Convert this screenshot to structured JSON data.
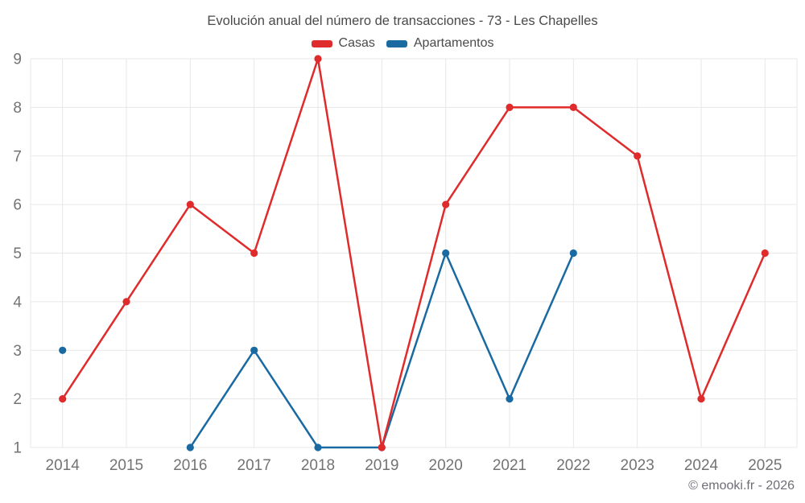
{
  "header": {
    "title": "Evolución anual del número de transacciones - 73 - Les Chapelles"
  },
  "legend": [
    {
      "label": "Casas",
      "color": "#df2b2b"
    },
    {
      "label": "Apartamentos",
      "color": "#1a6aa2"
    }
  ],
  "footer": {
    "copyright": "© emooki.fr - 2026"
  },
  "chart_data": {
    "type": "line",
    "title": "Evolución anual del número de transacciones - 73 - Les Chapelles",
    "categories": [
      "2014",
      "2015",
      "2016",
      "2017",
      "2018",
      "2019",
      "2020",
      "2021",
      "2022",
      "2023",
      "2024",
      "2025"
    ],
    "series": [
      {
        "name": "Casas",
        "color": "#df2b2b",
        "values": [
          2,
          4,
          6,
          5,
          9,
          1,
          6,
          8,
          8,
          7,
          2,
          5
        ]
      },
      {
        "name": "Apartamentos",
        "color": "#1a6aa2",
        "values": [
          3,
          null,
          1,
          3,
          1,
          1,
          5,
          2,
          5,
          null,
          null,
          null
        ]
      }
    ],
    "xlabel": "",
    "ylabel": "",
    "ylim": [
      1,
      9
    ],
    "yticks": [
      1,
      2,
      3,
      4,
      5,
      6,
      7,
      8,
      9
    ],
    "grid": true,
    "grid_color": "#e7e7e7",
    "tick_color": "#737373",
    "legend_position": "top"
  }
}
